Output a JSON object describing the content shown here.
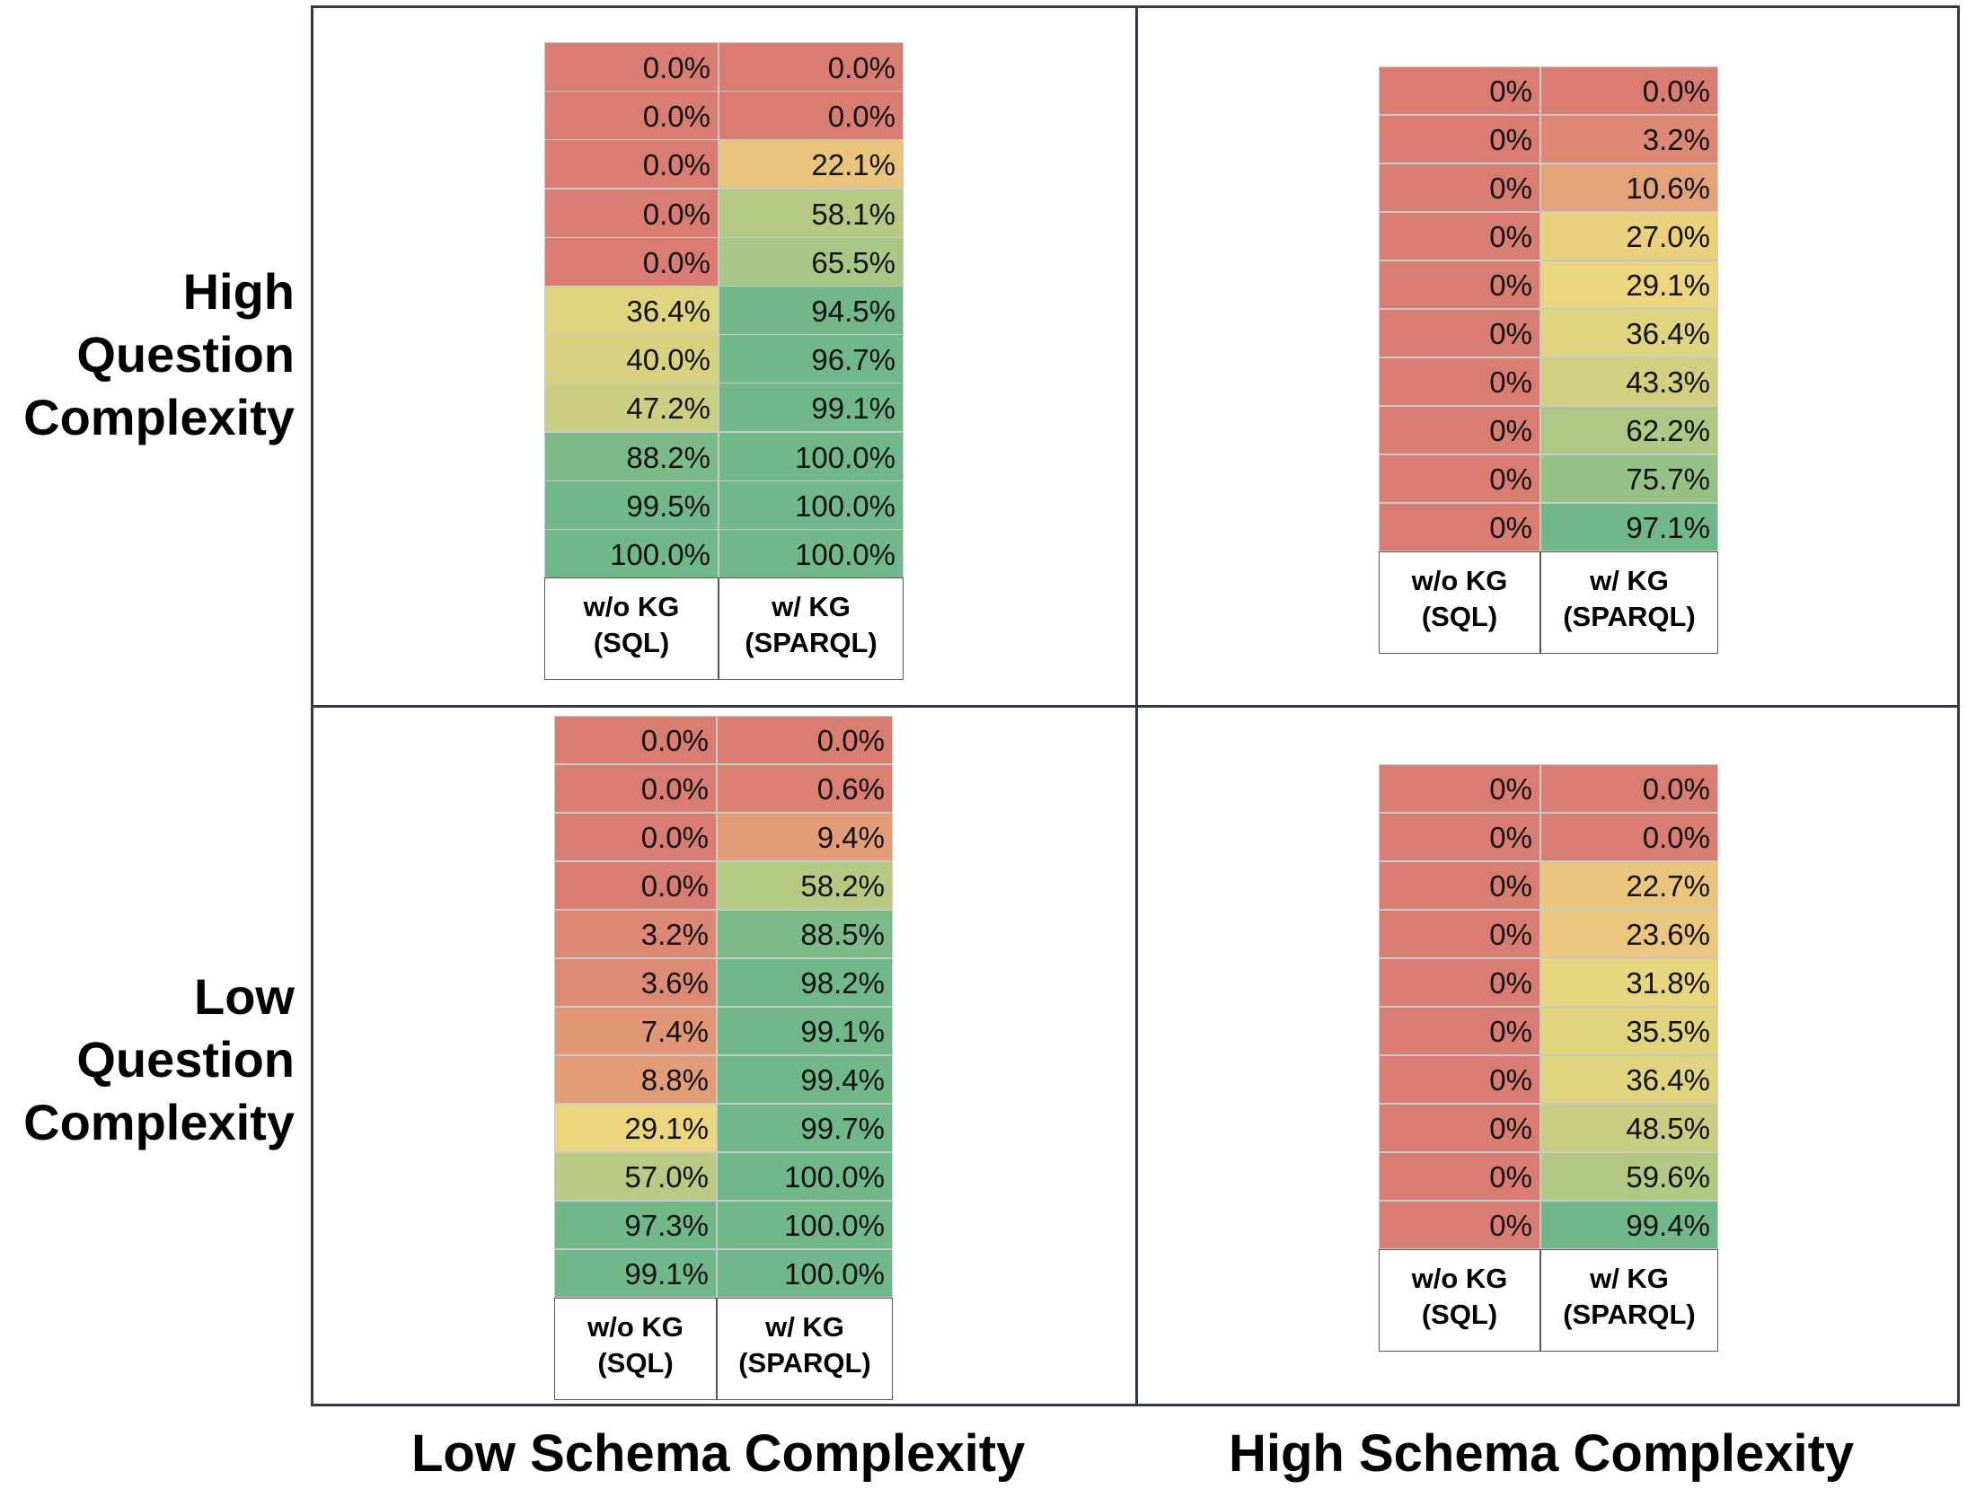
{
  "row_labels": {
    "high": [
      "High",
      "Question",
      "Complexity"
    ],
    "low": [
      "Low",
      "Question",
      "Complexity"
    ]
  },
  "col_labels": {
    "low": "Low Schema Complexity",
    "high": "High Schema Complexity"
  },
  "colors": {
    "red": "#d97d72",
    "orange": "#e9b27b",
    "yellow": "#ebd77e",
    "green": "#70b78a"
  },
  "chart_data": [
    {
      "type": "table",
      "panel": "High Question Complexity / Low Schema Complexity",
      "columns": [
        {
          "title": "w/o KG",
          "subtitle": "(SQL)",
          "values": [
            0.0,
            0.0,
            0.0,
            0.0,
            0.0,
            36.4,
            40.0,
            47.2,
            88.2,
            99.5,
            100.0
          ],
          "labels": [
            "0.0%",
            "0.0%",
            "0.0%",
            "0.0%",
            "0.0%",
            "36.4%",
            "40.0%",
            "47.2%",
            "88.2%",
            "99.5%",
            "100.0%"
          ]
        },
        {
          "title": "w/ KG",
          "subtitle": "(SPARQL)",
          "values": [
            0.0,
            0.0,
            22.1,
            58.1,
            65.5,
            94.5,
            96.7,
            99.1,
            100.0,
            100.0,
            100.0
          ],
          "labels": [
            "0.0%",
            "0.0%",
            "22.1%",
            "58.1%",
            "65.5%",
            "94.5%",
            "96.7%",
            "99.1%",
            "100.0%",
            "100.0%",
            "100.0%"
          ]
        }
      ]
    },
    {
      "type": "table",
      "panel": "High Question Complexity / High Schema Complexity",
      "columns": [
        {
          "title": "w/o KG",
          "subtitle": "(SQL)",
          "values": [
            0,
            0,
            0,
            0,
            0,
            0,
            0,
            0,
            0,
            0
          ],
          "labels": [
            "0%",
            "0%",
            "0%",
            "0%",
            "0%",
            "0%",
            "0%",
            "0%",
            "0%",
            "0%"
          ]
        },
        {
          "title": "w/ KG",
          "subtitle": "(SPARQL)",
          "values": [
            0.0,
            3.2,
            10.6,
            27.0,
            29.1,
            36.4,
            43.3,
            62.2,
            75.7,
            97.1
          ],
          "labels": [
            "0.0%",
            "3.2%",
            "10.6%",
            "27.0%",
            "29.1%",
            "36.4%",
            "43.3%",
            "62.2%",
            "75.7%",
            "97.1%"
          ]
        }
      ]
    },
    {
      "type": "table",
      "panel": "Low Question Complexity / Low Schema Complexity",
      "columns": [
        {
          "title": "w/o KG",
          "subtitle": "(SQL)",
          "values": [
            0.0,
            0.0,
            0.0,
            0.0,
            3.2,
            3.6,
            7.4,
            8.8,
            29.1,
            57.0,
            97.3,
            99.1
          ],
          "labels": [
            "0.0%",
            "0.0%",
            "0.0%",
            "0.0%",
            "3.2%",
            "3.6%",
            "7.4%",
            "8.8%",
            "29.1%",
            "57.0%",
            "97.3%",
            "99.1%"
          ]
        },
        {
          "title": "w/ KG",
          "subtitle": "(SPARQL)",
          "values": [
            0.0,
            0.6,
            9.4,
            58.2,
            88.5,
            98.2,
            99.1,
            99.4,
            99.7,
            100.0,
            100.0,
            100.0
          ],
          "labels": [
            "0.0%",
            "0.6%",
            "9.4%",
            "58.2%",
            "88.5%",
            "98.2%",
            "99.1%",
            "99.4%",
            "99.7%",
            "100.0%",
            "100.0%",
            "100.0%"
          ]
        }
      ]
    },
    {
      "type": "table",
      "panel": "Low Question Complexity / High Schema Complexity",
      "columns": [
        {
          "title": "w/o KG",
          "subtitle": "(SQL)",
          "values": [
            0,
            0,
            0,
            0,
            0,
            0,
            0,
            0,
            0,
            0
          ],
          "labels": [
            "0%",
            "0%",
            "0%",
            "0%",
            "0%",
            "0%",
            "0%",
            "0%",
            "0%",
            "0%"
          ]
        },
        {
          "title": "w/ KG",
          "subtitle": "(SPARQL)",
          "values": [
            0.0,
            0.0,
            22.7,
            23.6,
            31.8,
            35.5,
            36.4,
            48.5,
            59.6,
            99.4
          ],
          "labels": [
            "0.0%",
            "0.0%",
            "22.7%",
            "23.6%",
            "31.8%",
            "35.5%",
            "36.4%",
            "48.5%",
            "59.6%",
            "99.4%"
          ]
        }
      ]
    }
  ]
}
